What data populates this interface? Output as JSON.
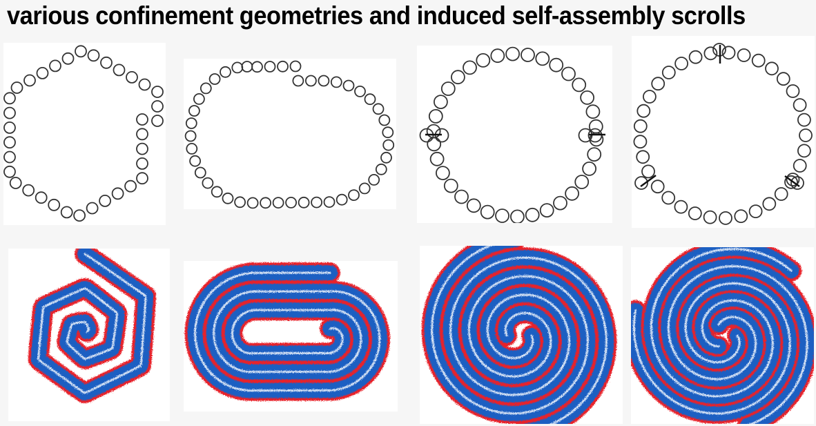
{
  "figure": {
    "title": "various confinement geometries and induced self-assembly scrolls"
  },
  "panels": [
    {
      "geometry": "hexagon",
      "arms": 1,
      "bead_color": "#333333"
    },
    {
      "geometry": "stadium",
      "arms": 1,
      "bead_color": "#333333"
    },
    {
      "geometry": "circle",
      "arms": 2,
      "bead_color": "#333333"
    },
    {
      "geometry": "circle",
      "arms": 3,
      "bead_color": "#333333"
    }
  ],
  "colors": {
    "blue": "#1c5fc2",
    "red": "#e8222a",
    "white": "#ffffff",
    "background": "#f6f6f6"
  }
}
